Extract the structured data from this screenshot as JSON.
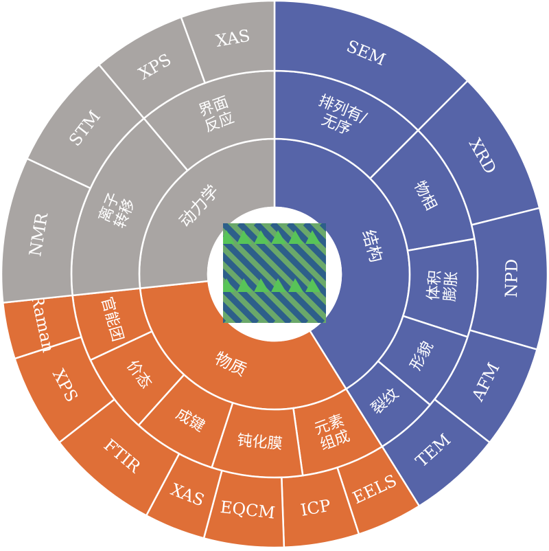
{
  "rings": [
    {
      "name": "结构",
      "middle": [
        {
          "label": [
            "排列有/",
            "无序"
          ],
          "outer": [
            "SEM"
          ]
        },
        {
          "label": [
            "物相"
          ],
          "outer": [
            "XRD"
          ]
        },
        {
          "label": [
            "体积",
            "膨胀"
          ],
          "outer": [
            "NPD"
          ]
        },
        {
          "label": [
            "形貌"
          ],
          "outer": [
            "AFM"
          ]
        },
        {
          "label": [
            "裂纹"
          ],
          "outer": [
            "TEM"
          ]
        }
      ]
    },
    {
      "name": "物质",
      "middle": [
        {
          "label": [
            "元素",
            "组成"
          ],
          "outer": [
            "EELS",
            "ICP"
          ]
        },
        {
          "label": [
            "钝化膜"
          ],
          "outer": [
            "EQCM",
            "XAS"
          ]
        },
        {
          "label": [
            "成键"
          ],
          "outer": [
            "FTIR"
          ]
        },
        {
          "label": [
            "价态"
          ],
          "outer": [
            "XPS"
          ]
        },
        {
          "label": [
            "官能团"
          ],
          "outer": [
            "Raman"
          ]
        }
      ]
    },
    {
      "name": "动力学",
      "middle": [
        {
          "label": [
            "离子",
            "转移"
          ],
          "outer": [
            "NMR",
            "STM"
          ]
        },
        {
          "label": [
            "界面",
            "反应"
          ],
          "outer": [
            "XPS",
            "XAS"
          ]
        }
      ]
    }
  ]
}
